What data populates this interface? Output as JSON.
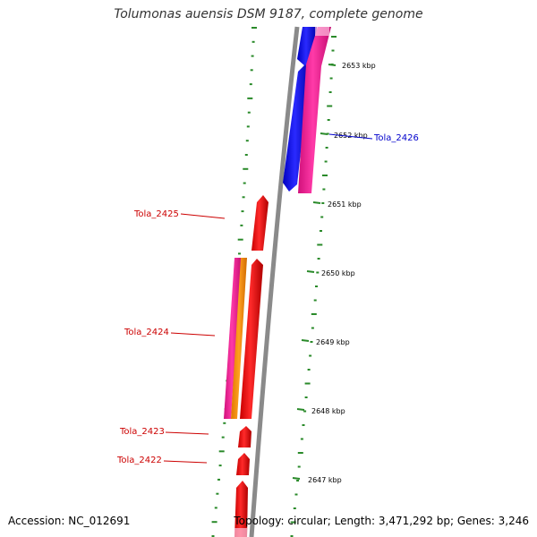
{
  "title": "Tolumonas auensis DSM 9187, complete genome",
  "footer": {
    "accession": "Accession: NC_012691",
    "topology": "Topology: circular; Length: 3,471,292 bp; Genes: 3,246"
  },
  "ticks": [
    "2653 kbp",
    "2652 kbp",
    "2651 kbp",
    "2650 kbp",
    "2649 kbp",
    "2648 kbp",
    "2647 kbp"
  ],
  "gene_labels": [
    {
      "text": "Tola_2426",
      "color": "#0000cc"
    },
    {
      "text": "Tola_2425",
      "color": "#cc0000"
    },
    {
      "text": "Tola_2424",
      "color": "#cc0000"
    },
    {
      "text": "Tola_2423",
      "color": "#cc0000"
    },
    {
      "text": "Tola_2422",
      "color": "#cc0000"
    }
  ],
  "colors": {
    "backbone": "#8a8a8a",
    "forward_cds": "#ff0000",
    "reverse_cds": "#0000ff",
    "magenta_feature": "#ff1493",
    "orange_feature": "#ff8c00",
    "tick_green": "#2a8a2a"
  }
}
